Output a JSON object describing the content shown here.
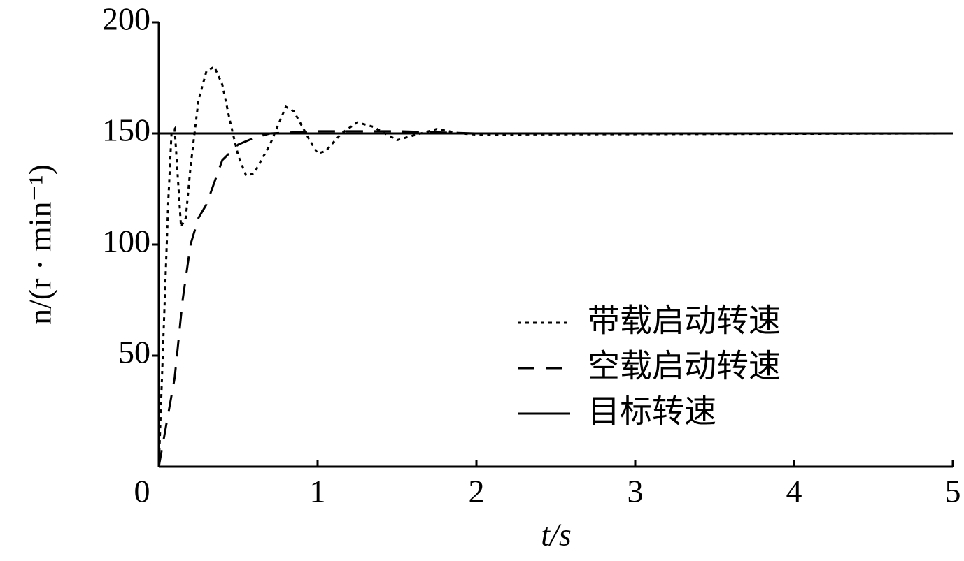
{
  "chart_data": {
    "type": "line",
    "xlabel": "t/s",
    "ylabel": "n/(r · min⁻¹)",
    "xlim": [
      0,
      5
    ],
    "ylim": [
      0,
      200
    ],
    "xticks": [
      0,
      1,
      2,
      3,
      4,
      5
    ],
    "yticks": [
      50,
      100,
      150,
      200
    ],
    "legend": "right",
    "series": [
      {
        "name": "带载启动转速",
        "color": "#000000",
        "style": "dotted",
        "x": [
          0,
          0.03,
          0.06,
          0.08,
          0.1,
          0.12,
          0.14,
          0.17,
          0.2,
          0.25,
          0.3,
          0.35,
          0.4,
          0.45,
          0.5,
          0.55,
          0.6,
          0.7,
          0.8,
          0.85,
          0.95,
          1.0,
          1.05,
          1.15,
          1.25,
          1.35,
          1.5,
          1.6,
          1.75,
          1.9,
          2,
          5
        ],
        "values": [
          0,
          60,
          120,
          150,
          152,
          130,
          108,
          112,
          135,
          165,
          178,
          180,
          172,
          155,
          140,
          131,
          132,
          145,
          162,
          160,
          147,
          141,
          142,
          150,
          155,
          153,
          147,
          149,
          152,
          150,
          149.5,
          150
        ]
      },
      {
        "name": "空载启动转速",
        "color": "#000000",
        "style": "dashed",
        "x": [
          0,
          0.05,
          0.1,
          0.15,
          0.2,
          0.25,
          0.3,
          0.35,
          0.4,
          0.5,
          0.6,
          0.7,
          1,
          1.5,
          2,
          5
        ],
        "values": [
          0,
          20,
          40,
          75,
          100,
          112,
          118,
          128,
          138,
          145,
          148,
          150,
          151,
          151,
          150,
          150
        ]
      },
      {
        "name": "目标转速",
        "color": "#000000",
        "style": "solid",
        "x": [
          0,
          5
        ],
        "values": [
          150,
          150
        ]
      }
    ]
  }
}
